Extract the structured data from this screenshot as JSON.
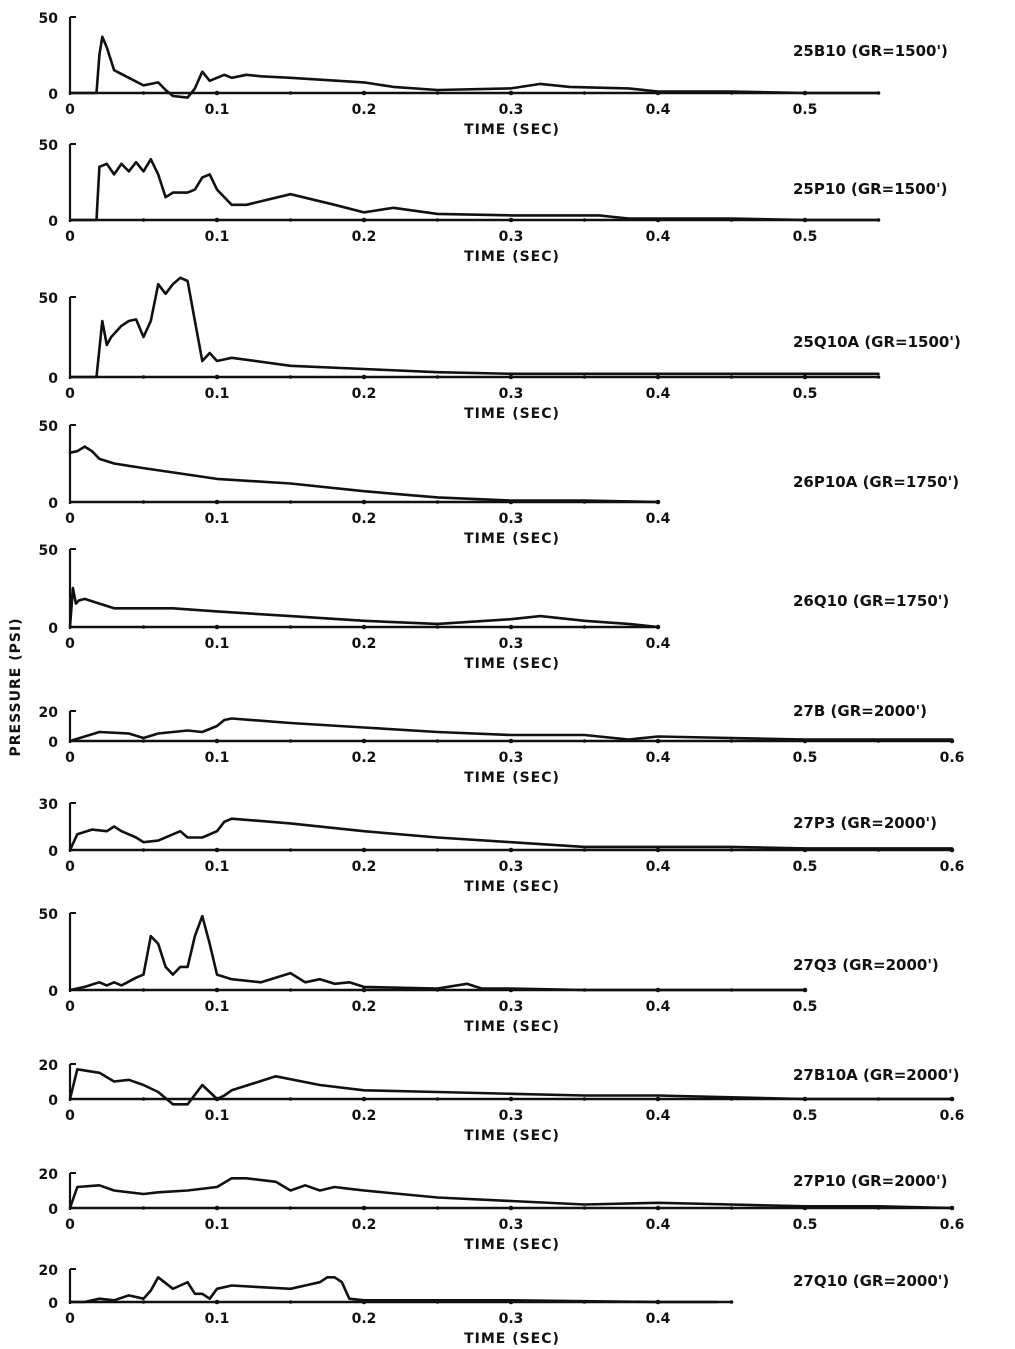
{
  "figure": {
    "ylabel": "PRESSURE (PSI)"
  },
  "chart_data": [
    {
      "type": "line",
      "label": "25B10 (GR=1500')",
      "xlabel": "TIME (SEC)",
      "ylabel": "PRESSURE (PSI)",
      "xlim": [
        0,
        0.55
      ],
      "ylim": [
        0,
        50
      ],
      "xticks": [
        "0",
        "0.1",
        "0.2",
        "0.3",
        "0.4",
        "0.5"
      ],
      "yticks": [
        "0",
        "50"
      ],
      "x": [
        0,
        0.018,
        0.02,
        0.022,
        0.025,
        0.03,
        0.04,
        0.05,
        0.06,
        0.065,
        0.07,
        0.08,
        0.085,
        0.09,
        0.095,
        0.1,
        0.105,
        0.11,
        0.12,
        0.13,
        0.15,
        0.2,
        0.22,
        0.25,
        0.3,
        0.32,
        0.34,
        0.38,
        0.4,
        0.45,
        0.5,
        0.55
      ],
      "y": [
        0,
        0,
        25,
        37,
        30,
        15,
        10,
        5,
        7,
        2,
        -2,
        -3,
        3,
        14,
        8,
        10,
        12,
        10,
        12,
        11,
        10,
        7,
        4,
        2,
        3,
        6,
        4,
        3,
        1,
        1,
        0,
        0
      ]
    },
    {
      "type": "line",
      "label": "25P10 (GR=1500')",
      "xlabel": "TIME (SEC)",
      "ylabel": "PRESSURE (PSI)",
      "xlim": [
        0,
        0.55
      ],
      "ylim": [
        0,
        50
      ],
      "xticks": [
        "0",
        "0.1",
        "0.2",
        "0.3",
        "0.4",
        "0.5"
      ],
      "yticks": [
        "0",
        "50"
      ],
      "x": [
        0,
        0.018,
        0.02,
        0.025,
        0.03,
        0.035,
        0.04,
        0.045,
        0.05,
        0.055,
        0.06,
        0.065,
        0.07,
        0.08,
        0.085,
        0.09,
        0.095,
        0.1,
        0.11,
        0.12,
        0.15,
        0.18,
        0.2,
        0.22,
        0.25,
        0.3,
        0.36,
        0.37,
        0.38,
        0.45,
        0.5,
        0.55
      ],
      "y": [
        0,
        0,
        35,
        37,
        30,
        37,
        32,
        38,
        32,
        40,
        30,
        15,
        18,
        18,
        20,
        28,
        30,
        20,
        10,
        10,
        17,
        10,
        5,
        8,
        4,
        3,
        3,
        2,
        1,
        1,
        0,
        0
      ]
    },
    {
      "type": "line",
      "label": "25Q10A (GR=1500')",
      "xlabel": "TIME (SEC)",
      "ylabel": "PRESSURE (PSI)",
      "xlim": [
        0,
        0.55
      ],
      "ylim": [
        0,
        60
      ],
      "xticks": [
        "0",
        "0.1",
        "0.2",
        "0.3",
        "0.4",
        "0.5"
      ],
      "yticks": [
        "0",
        "50"
      ],
      "x": [
        0,
        0.018,
        0.022,
        0.025,
        0.028,
        0.035,
        0.04,
        0.045,
        0.05,
        0.055,
        0.06,
        0.065,
        0.07,
        0.075,
        0.08,
        0.085,
        0.09,
        0.095,
        0.1,
        0.11,
        0.15,
        0.2,
        0.25,
        0.3,
        0.35,
        0.4,
        0.45,
        0.5,
        0.55
      ],
      "y": [
        0,
        0,
        35,
        20,
        25,
        32,
        35,
        36,
        25,
        35,
        58,
        52,
        58,
        62,
        60,
        35,
        10,
        15,
        10,
        12,
        7,
        5,
        3,
        2,
        2,
        2,
        2,
        2,
        2
      ]
    },
    {
      "type": "line",
      "label": "26P10A (GR=1750')",
      "xlabel": "TIME (SEC)",
      "ylabel": "PRESSURE (PSI)",
      "xlim": [
        0,
        0.4
      ],
      "ylim": [
        0,
        50
      ],
      "xticks": [
        "0",
        "0.1",
        "0.2",
        "0.3",
        "0.4"
      ],
      "yticks": [
        "0",
        "50"
      ],
      "x": [
        0,
        0.005,
        0.01,
        0.015,
        0.02,
        0.03,
        0.05,
        0.1,
        0.15,
        0.2,
        0.25,
        0.3,
        0.35,
        0.4
      ],
      "y": [
        32,
        33,
        36,
        33,
        28,
        25,
        22,
        15,
        12,
        7,
        3,
        1,
        1,
        0
      ]
    },
    {
      "type": "line",
      "label": "26Q10 (GR=1750')",
      "xlabel": "TIME (SEC)",
      "ylabel": "PRESSURE (PSI)",
      "xlim": [
        0,
        0.4
      ],
      "ylim": [
        0,
        50
      ],
      "xticks": [
        "0",
        "0.1",
        "0.2",
        "0.3",
        "0.4"
      ],
      "yticks": [
        "0",
        "50"
      ],
      "x": [
        0,
        0.002,
        0.004,
        0.006,
        0.01,
        0.02,
        0.03,
        0.04,
        0.07,
        0.1,
        0.15,
        0.2,
        0.25,
        0.3,
        0.32,
        0.35,
        0.38,
        0.4
      ],
      "y": [
        0,
        25,
        15,
        17,
        18,
        15,
        12,
        12,
        12,
        10,
        7,
        4,
        2,
        5,
        7,
        4,
        2,
        0
      ]
    },
    {
      "type": "line",
      "label": "27B (GR=2000')",
      "xlabel": "TIME (SEC)",
      "ylabel": "PRESSURE (PSI)",
      "xlim": [
        0,
        0.6
      ],
      "ylim": [
        0,
        20
      ],
      "xticks": [
        "0",
        "0.1",
        "0.2",
        "0.3",
        "0.4",
        "0.5",
        "0.6"
      ],
      "yticks": [
        "0",
        "20"
      ],
      "x": [
        0,
        0.01,
        0.02,
        0.04,
        0.05,
        0.06,
        0.08,
        0.09,
        0.1,
        0.105,
        0.11,
        0.15,
        0.2,
        0.25,
        0.3,
        0.35,
        0.38,
        0.4,
        0.45,
        0.5,
        0.55,
        0.6
      ],
      "y": [
        0,
        3,
        6,
        5,
        2,
        5,
        7,
        6,
        10,
        14,
        15,
        12,
        9,
        6,
        4,
        4,
        1,
        3,
        2,
        1,
        1,
        1
      ]
    },
    {
      "type": "line",
      "label": "27P3 (GR=2000')",
      "xlabel": "TIME (SEC)",
      "ylabel": "PRESSURE (PSI)",
      "xlim": [
        0,
        0.6
      ],
      "ylim": [
        0,
        30
      ],
      "xticks": [
        "0",
        "0.1",
        "0.2",
        "0.3",
        "0.4",
        "0.5",
        "0.6"
      ],
      "yticks": [
        "0",
        "30"
      ],
      "x": [
        0,
        0.005,
        0.015,
        0.025,
        0.03,
        0.035,
        0.045,
        0.05,
        0.06,
        0.07,
        0.075,
        0.08,
        0.09,
        0.1,
        0.105,
        0.11,
        0.15,
        0.2,
        0.25,
        0.3,
        0.35,
        0.4,
        0.45,
        0.5,
        0.55,
        0.6
      ],
      "y": [
        0,
        10,
        13,
        12,
        15,
        12,
        8,
        5,
        6,
        10,
        12,
        8,
        8,
        12,
        18,
        20,
        17,
        12,
        8,
        5,
        2,
        2,
        2,
        1,
        1,
        1
      ]
    },
    {
      "type": "line",
      "label": "27Q3 (GR=2000')",
      "xlabel": "TIME (SEC)",
      "ylabel": "PRESSURE (PSI)",
      "xlim": [
        0,
        0.5
      ],
      "ylim": [
        0,
        50
      ],
      "xticks": [
        "0",
        "0.1",
        "0.2",
        "0.3",
        "0.4",
        "0.5"
      ],
      "yticks": [
        "0",
        "50"
      ],
      "x": [
        0,
        0.01,
        0.02,
        0.025,
        0.03,
        0.035,
        0.045,
        0.05,
        0.055,
        0.06,
        0.065,
        0.07,
        0.075,
        0.08,
        0.085,
        0.09,
        0.095,
        0.1,
        0.11,
        0.13,
        0.15,
        0.16,
        0.17,
        0.18,
        0.19,
        0.2,
        0.25,
        0.27,
        0.28,
        0.3,
        0.35,
        0.4,
        0.45,
        0.5
      ],
      "y": [
        0,
        2,
        5,
        3,
        5,
        3,
        8,
        10,
        35,
        30,
        15,
        10,
        15,
        15,
        35,
        48,
        30,
        10,
        7,
        5,
        11,
        5,
        7,
        4,
        5,
        2,
        1,
        4,
        1,
        1,
        0,
        0,
        0,
        0
      ]
    },
    {
      "type": "line",
      "label": "27B10A (GR=2000')",
      "xlabel": "TIME (SEC)",
      "ylabel": "PRESSURE (PSI)",
      "xlim": [
        0,
        0.6
      ],
      "ylim": [
        0,
        20
      ],
      "xticks": [
        "0",
        "0.1",
        "0.2",
        "0.3",
        "0.4",
        "0.5",
        "0.6"
      ],
      "yticks": [
        "0",
        "20"
      ],
      "x": [
        0,
        0.005,
        0.02,
        0.03,
        0.04,
        0.05,
        0.06,
        0.07,
        0.08,
        0.09,
        0.095,
        0.1,
        0.105,
        0.11,
        0.14,
        0.17,
        0.2,
        0.25,
        0.3,
        0.35,
        0.4,
        0.45,
        0.5,
        0.55,
        0.6
      ],
      "y": [
        0,
        17,
        15,
        10,
        11,
        8,
        4,
        -3,
        -3,
        8,
        4,
        0,
        2,
        5,
        13,
        8,
        5,
        4,
        3,
        2,
        2,
        1,
        0,
        0,
        0
      ]
    },
    {
      "type": "line",
      "label": "27P10 (GR=2000')",
      "xlabel": "TIME (SEC)",
      "ylabel": "PRESSURE (PSI)",
      "xlim": [
        0,
        0.6
      ],
      "ylim": [
        0,
        20
      ],
      "xticks": [
        "0",
        "0.1",
        "0.2",
        "0.3",
        "0.4",
        "0.5",
        "0.6"
      ],
      "yticks": [
        "0",
        "20"
      ],
      "x": [
        0,
        0.005,
        0.02,
        0.03,
        0.05,
        0.06,
        0.08,
        0.1,
        0.11,
        0.12,
        0.14,
        0.15,
        0.16,
        0.17,
        0.18,
        0.19,
        0.2,
        0.25,
        0.3,
        0.35,
        0.4,
        0.45,
        0.5,
        0.55,
        0.6
      ],
      "y": [
        0,
        12,
        13,
        10,
        8,
        9,
        10,
        12,
        17,
        17,
        15,
        10,
        13,
        10,
        12,
        11,
        10,
        6,
        4,
        2,
        3,
        2,
        1,
        1,
        0
      ]
    },
    {
      "type": "line",
      "label": "27Q10 (GR=2000')",
      "xlabel": "TIME (SEC)",
      "ylabel": "PRESSURE (PSI)",
      "xlim": [
        0,
        0.45
      ],
      "ylim": [
        0,
        20
      ],
      "xticks": [
        "0",
        "0.1",
        "0.2",
        "0.3",
        "0.4"
      ],
      "yticks": [
        "0",
        "20"
      ],
      "x": [
        0,
        0.01,
        0.02,
        0.03,
        0.04,
        0.05,
        0.055,
        0.06,
        0.07,
        0.075,
        0.08,
        0.085,
        0.09,
        0.095,
        0.1,
        0.11,
        0.13,
        0.15,
        0.16,
        0.17,
        0.175,
        0.18,
        0.185,
        0.19,
        0.2,
        0.3,
        0.4,
        0.44
      ],
      "y": [
        0,
        0,
        2,
        1,
        4,
        2,
        7,
        15,
        8,
        10,
        12,
        5,
        5,
        2,
        8,
        10,
        9,
        8,
        10,
        12,
        15,
        15,
        12,
        2,
        1,
        1,
        0,
        0
      ]
    }
  ]
}
